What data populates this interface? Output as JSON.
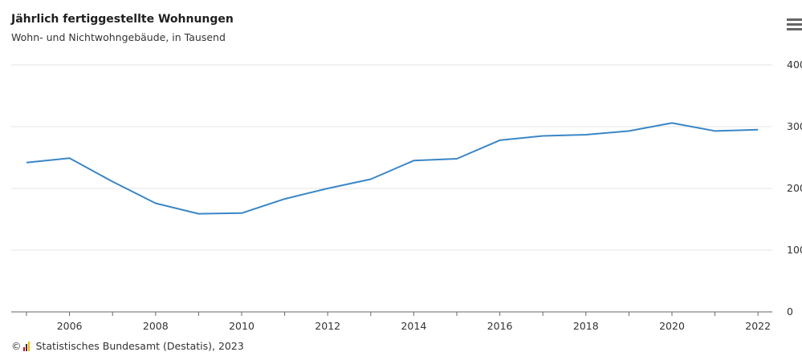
{
  "header": {
    "title": "Jährlich fertiggestellte Wohnungen",
    "subtitle": "Wohn- und Nichtwohngebäude, in Tausend"
  },
  "footer": {
    "copyright": "©",
    "source": "Statistisches Bundesamt (Destatis), 2023"
  },
  "icons": {
    "menu": "hamburger-menu-icon",
    "logo": "destatis-logo-icon"
  },
  "colors": {
    "line": "#3a86c6",
    "grid": "#e6e6e6",
    "axis": "#666666"
  },
  "chart_data": {
    "type": "line",
    "title": "Jährlich fertiggestellte Wohnungen",
    "subtitle": "Wohn- und Nichtwohngebäude, in Tausend",
    "x": [
      2005,
      2006,
      2007,
      2008,
      2009,
      2010,
      2011,
      2012,
      2013,
      2014,
      2015,
      2016,
      2017,
      2018,
      2019,
      2020,
      2021,
      2022
    ],
    "series": [
      {
        "values": [
          242,
          249,
          211,
          176,
          159,
          160,
          183,
          200,
          215,
          245,
          248,
          278,
          285,
          287,
          293,
          306,
          293,
          295
        ]
      }
    ],
    "x_ticks": [
      2006,
      2008,
      2010,
      2012,
      2014,
      2016,
      2018,
      2020,
      2022
    ],
    "y_ticks": [
      0,
      100,
      200,
      300,
      400
    ],
    "ylim": [
      0,
      400
    ],
    "y_axis_side": "right",
    "grid": true
  }
}
